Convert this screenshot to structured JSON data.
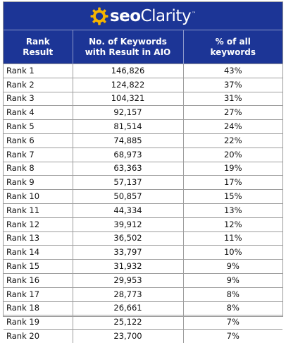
{
  "brand": {
    "name_part1": "seo",
    "name_part2": "Clarity",
    "trademark": "™",
    "colors": {
      "header_bg": "#1c3596",
      "logo_gear": "#f5b400",
      "text_light": "#ffffff"
    }
  },
  "table": {
    "headers": [
      [
        "Rank",
        "Result"
      ],
      [
        "No. of Keywords",
        "with Result in AIO"
      ],
      [
        "% of all",
        "keywords"
      ]
    ],
    "rows": [
      [
        "Rank 1",
        "146,826",
        "43%"
      ],
      [
        "Rank 2",
        "124,822",
        "37%"
      ],
      [
        "Rank 3",
        "104,321",
        "31%"
      ],
      [
        "Rank 4",
        "92,157",
        "27%"
      ],
      [
        "Rank 5",
        "81,514",
        "24%"
      ],
      [
        "Rank 6",
        "74,885",
        "22%"
      ],
      [
        "Rank 7",
        "68,973",
        "20%"
      ],
      [
        "Rank 8",
        "63,363",
        "19%"
      ],
      [
        "Rank 9",
        "57,137",
        "17%"
      ],
      [
        "Rank 10",
        "50,857",
        "15%"
      ],
      [
        "Rank 11",
        "44,334",
        "13%"
      ],
      [
        "Rank 12",
        "39,912",
        "12%"
      ],
      [
        "Rank 13",
        "36,502",
        "11%"
      ],
      [
        "Rank 14",
        "33,797",
        "10%"
      ],
      [
        "Rank 15",
        "31,932",
        "9%"
      ],
      [
        "Rank 16",
        "29,953",
        "9%"
      ],
      [
        "Rank 17",
        "28,773",
        "8%"
      ],
      [
        "Rank 18",
        "26,661",
        "8%"
      ],
      [
        "Rank 19",
        "25,122",
        "7%"
      ],
      [
        "Rank 20",
        "23,700",
        "7%"
      ]
    ]
  }
}
